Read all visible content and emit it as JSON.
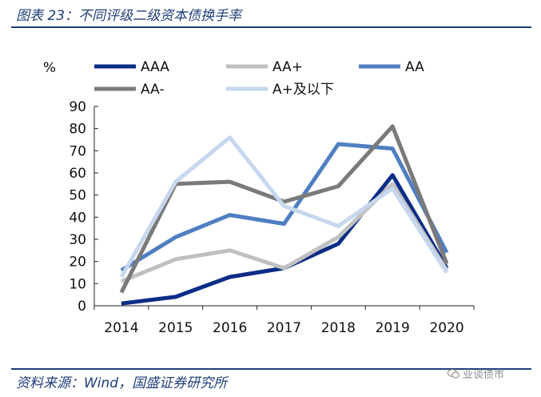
{
  "figure_title": "图表 23：不同评级二级资本债换手率",
  "source": "资料来源：Wind，国盛证券研究所",
  "watermark": "业谈债市",
  "chart_data": {
    "type": "line",
    "title": "",
    "xlabel": "",
    "ylabel": "%",
    "ylim": [
      0,
      90
    ],
    "yticks": [
      0,
      10,
      20,
      30,
      40,
      50,
      60,
      70,
      80,
      90
    ],
    "categories": [
      "2014",
      "2015",
      "2016",
      "2017",
      "2018",
      "2019",
      "2020"
    ],
    "grid": false,
    "legend_position": "top",
    "series": [
      {
        "name": "AAA",
        "color": "#0a2d86",
        "values": [
          1,
          4,
          13,
          17,
          28,
          59,
          17
        ]
      },
      {
        "name": "AA+",
        "color": "#c0c0c0",
        "values": [
          11,
          21,
          25,
          17,
          31,
          55,
          16
        ]
      },
      {
        "name": "AA",
        "color": "#4f7fc3",
        "values": [
          16,
          31,
          41,
          37,
          73,
          71,
          24
        ]
      },
      {
        "name": "AA-",
        "color": "#7a7a7a",
        "values": [
          6,
          55,
          56,
          47,
          54,
          81,
          19
        ]
      },
      {
        "name": "A+及以下",
        "color": "#c6d7ee",
        "values": [
          13,
          56,
          76,
          45,
          36,
          53,
          15
        ]
      }
    ]
  }
}
